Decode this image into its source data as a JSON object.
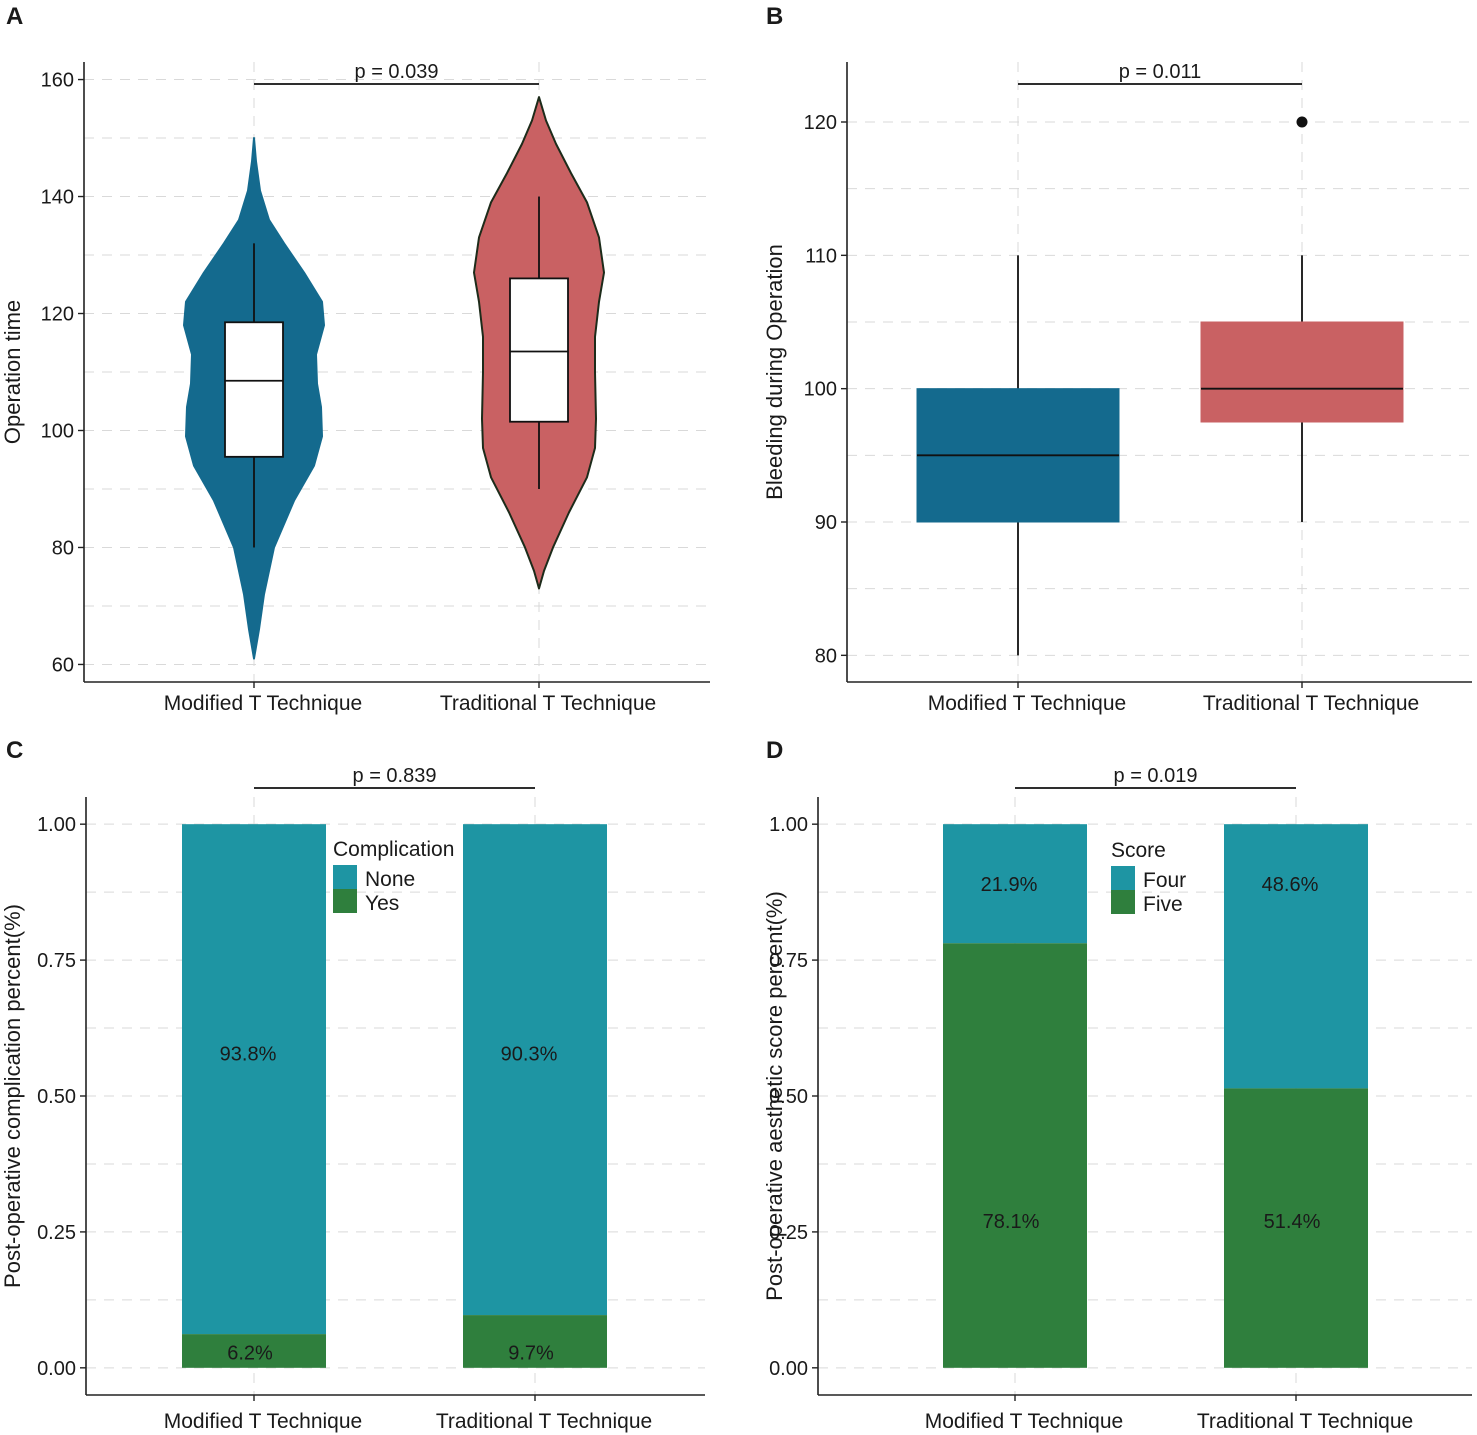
{
  "colors": {
    "blue": "#146a8e",
    "red": "#c96163",
    "teal": "#1e95a3",
    "green": "#2f7f3d",
    "axis": "#222222",
    "grid": "#d9d9d9"
  },
  "chart_data": [
    {
      "panel": "A",
      "type": "violin",
      "ylabel": "Operation time",
      "categories": [
        "Modified T Technique",
        "Traditional T Technique"
      ],
      "ylim": [
        57,
        163
      ],
      "yticks": [
        60,
        80,
        100,
        120,
        140,
        160
      ],
      "p_value": "p = 0.039",
      "series": [
        {
          "name": "Modified T Technique",
          "violin_range": [
            61,
            150
          ],
          "box": {
            "min": 80,
            "q1": 95.5,
            "median": 108.5,
            "q3": 118.5,
            "max": 132
          }
        },
        {
          "name": "Traditional T Technique",
          "violin_range": [
            73,
            157
          ],
          "box": {
            "min": 90,
            "q1": 101.5,
            "median": 113.5,
            "q3": 126,
            "max": 140
          }
        }
      ]
    },
    {
      "panel": "B",
      "type": "box",
      "ylabel": "Bleeding during Operation",
      "categories": [
        "Modified T Technique",
        "Traditional T Technique"
      ],
      "ylim": [
        78,
        124.5
      ],
      "yticks": [
        80,
        90,
        100,
        110,
        120
      ],
      "p_value": "p = 0.011",
      "series": [
        {
          "name": "Modified T Technique",
          "min": 80,
          "q1": 90,
          "median": 95,
          "q3": 100,
          "max": 110,
          "outliers": []
        },
        {
          "name": "Traditional T Technique",
          "min": 90,
          "q1": 97.5,
          "median": 100,
          "q3": 105,
          "max": 110,
          "outliers": [
            120
          ]
        }
      ]
    },
    {
      "panel": "C",
      "type": "bar",
      "stacked": true,
      "ylabel": "Post-operative complication percent(%)",
      "categories": [
        "Modified T Technique",
        "Traditional T Technique"
      ],
      "ylim": [
        -0.05,
        1.05
      ],
      "yticks": [
        "0.00",
        "0.25",
        "0.50",
        "0.75",
        "1.00"
      ],
      "p_value": "p = 0.839",
      "legend_title": "Complication",
      "series": [
        {
          "name": "None",
          "values": [
            0.938,
            0.903
          ],
          "labels": [
            "93.8%",
            "90.3%"
          ]
        },
        {
          "name": "Yes",
          "values": [
            0.062,
            0.097
          ],
          "labels": [
            "6.2%",
            "9.7%"
          ]
        }
      ]
    },
    {
      "panel": "D",
      "type": "bar",
      "stacked": true,
      "ylabel": "Post-operative aesthetic score percent(%)",
      "categories": [
        "Modified T Technique",
        "Traditional T Technique"
      ],
      "ylim": [
        -0.05,
        1.05
      ],
      "yticks": [
        "0.00",
        "0.25",
        "0.50",
        "0.75",
        "1.00"
      ],
      "p_value": "p = 0.019",
      "legend_title": "Score",
      "series": [
        {
          "name": "Four",
          "values": [
            0.219,
            0.486
          ],
          "labels": [
            "21.9%",
            "48.6%"
          ]
        },
        {
          "name": "Five",
          "values": [
            0.781,
            0.514
          ],
          "labels": [
            "78.1%",
            "51.4%"
          ]
        }
      ]
    }
  ]
}
